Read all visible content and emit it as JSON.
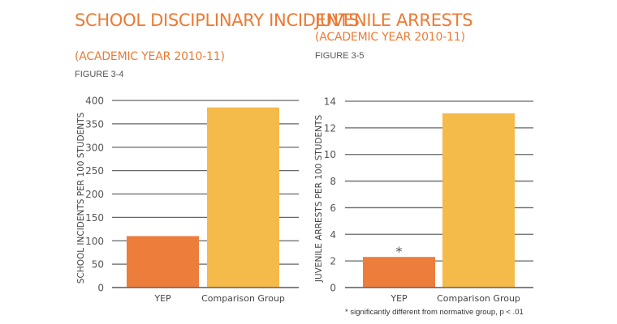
{
  "chart_data": [
    {
      "type": "bar",
      "title": "SCHOOL DISCIPLINARY INCIDENTS",
      "subtitle": "(ACADEMIC YEAR 2010-11)",
      "figure": "FIGURE 3-4",
      "ylabel": "SCHOOL INCIDENTS PER 100 STUDENTS",
      "xlabel": "",
      "categories": [
        "YEP",
        "Comparison Group"
      ],
      "values": [
        110,
        385
      ],
      "colors": [
        "#ed7d3a",
        "#f4bb4b"
      ],
      "ylim": [
        0,
        400
      ],
      "yticks": [
        0,
        50,
        100,
        150,
        200,
        250,
        300,
        350,
        400
      ],
      "grid": true,
      "annotations": []
    },
    {
      "type": "bar",
      "title": "JUVENILE ARRESTS",
      "subtitle": "(ACADEMIC YEAR 2010-11)",
      "figure": "FIGURE 3-5",
      "ylabel": "JUVENILE ARRESTS PER 100 STUDENTS",
      "xlabel": "",
      "categories": [
        "YEP",
        "Comparison Group"
      ],
      "values": [
        2.3,
        13.1
      ],
      "colors": [
        "#ed7d3a",
        "#f4bb4b"
      ],
      "ylim": [
        0,
        14
      ],
      "yticks": [
        0,
        2,
        4,
        6,
        8,
        10,
        12,
        14
      ],
      "grid": true,
      "annotations": [
        {
          "category": "YEP",
          "text": "*"
        }
      ],
      "footnote": "* significantly different from normative group, p < .01"
    }
  ]
}
